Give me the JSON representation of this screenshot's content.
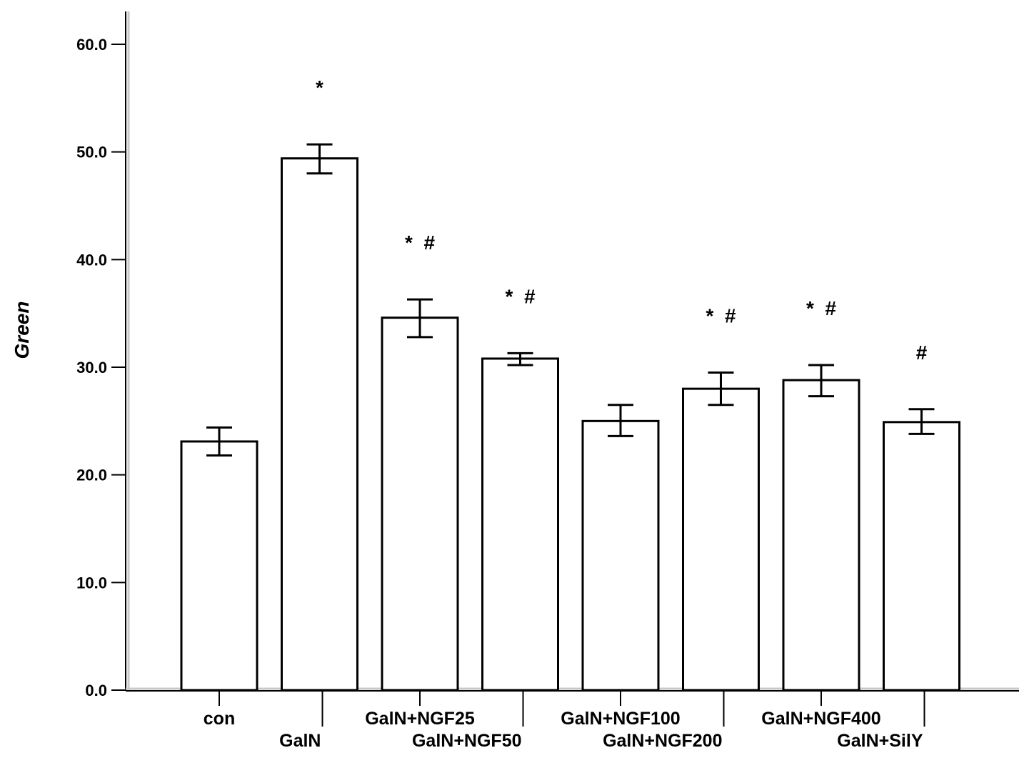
{
  "chart_data": {
    "type": "bar",
    "title": "",
    "xlabel": "",
    "ylabel": "Green",
    "ylim": [
      0,
      60
    ],
    "yticks": [
      "0.0",
      "10.0",
      "20.0",
      "30.0",
      "40.0",
      "50.0",
      "60.0"
    ],
    "grid": false,
    "categories": [
      "con",
      "GalN",
      "GalN+NGF25",
      "GalN+NGF50",
      "GalN+NGF100",
      "GalN+NGF200",
      "GalN+NGF400",
      "GalN+SilY"
    ],
    "values": [
      23.1,
      49.4,
      34.6,
      30.8,
      25.0,
      28.0,
      28.8,
      24.9
    ],
    "error_lower": [
      21.8,
      48.0,
      32.8,
      30.2,
      23.6,
      26.5,
      27.3,
      23.8
    ],
    "error_upper": [
      24.4,
      50.7,
      36.3,
      31.3,
      26.5,
      29.5,
      30.2,
      26.1
    ],
    "significance": [
      "",
      "*",
      "*  #",
      "*  #",
      "",
      "*  #",
      "*  #",
      "#"
    ],
    "colors": {
      "bar_fill": "#ffffff",
      "bar_stroke": "#000000",
      "axis": "#000000"
    }
  }
}
